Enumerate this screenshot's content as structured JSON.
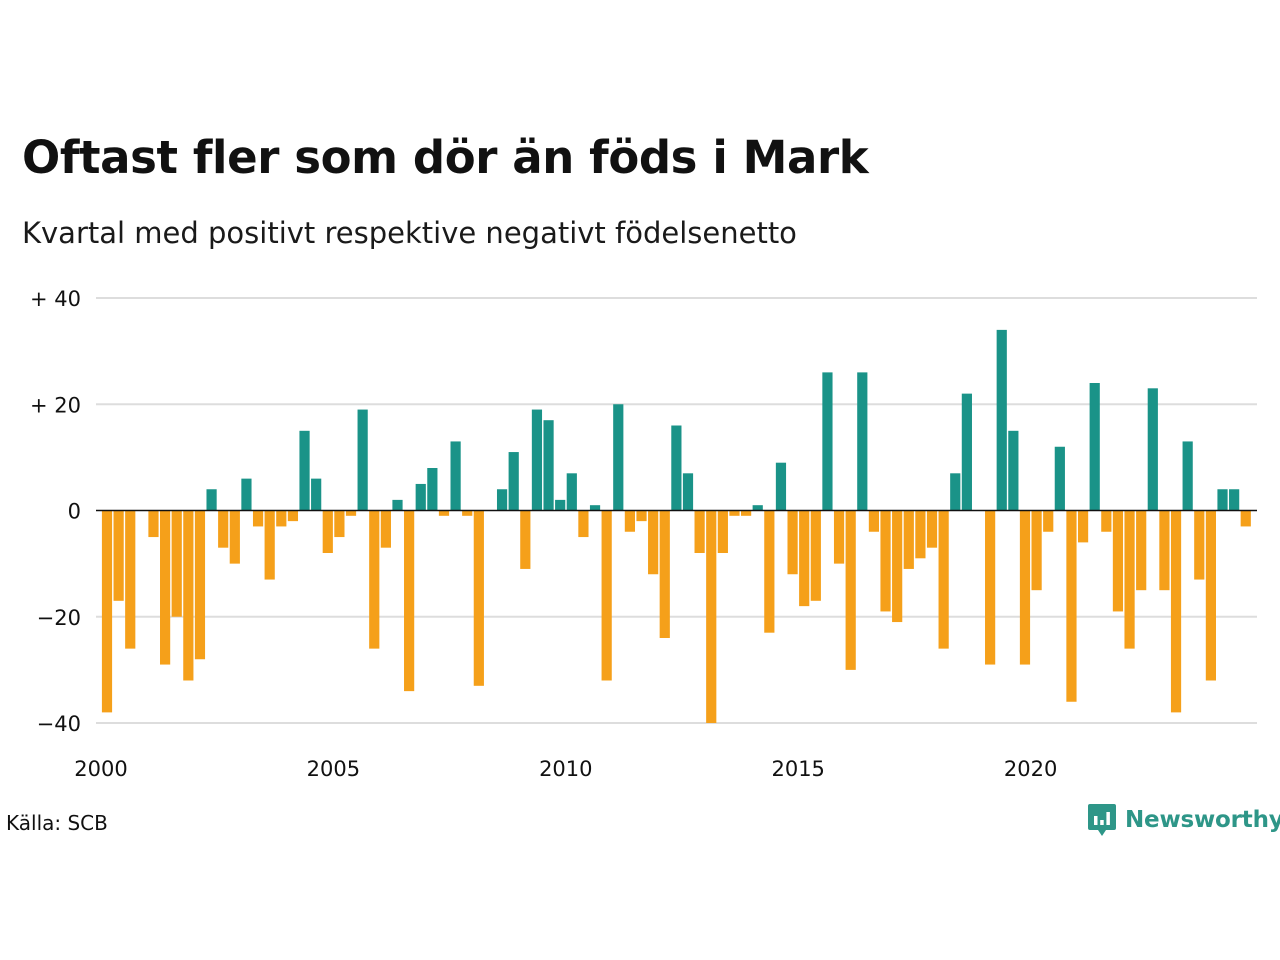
{
  "header": {
    "title": "Oftast fler som dör än föds i Mark",
    "subtitle": "Kvartal med positivt respektive negativt födelsenetto"
  },
  "footer": {
    "source": "Källa: SCB",
    "brand": "Newsworthy",
    "brand_icon": "newsworthy-logo-icon"
  },
  "colors": {
    "positive": "#1a9388",
    "negative": "#f5a01a",
    "grid": "#dddddd",
    "zero_line": "#111111",
    "brand": "#2e9688"
  },
  "chart_data": {
    "type": "bar",
    "title": "Oftast fler som dör än föds i Mark",
    "subtitle": "Kvartal med positivt respektive negativt födelsenetto",
    "xlabel": "",
    "ylabel": "",
    "x_start": 2000,
    "periods_per_year": 4,
    "ylim": [
      -40,
      40
    ],
    "yticks": [
      {
        "value": 40,
        "label": "+ 40"
      },
      {
        "value": 20,
        "label": "+ 20"
      },
      {
        "value": 0,
        "label": "0"
      },
      {
        "value": -20,
        "label": "−20"
      },
      {
        "value": -40,
        "label": "−40"
      }
    ],
    "xticks": [
      {
        "value": 2000,
        "label": "2000"
      },
      {
        "value": 2005,
        "label": "2005"
      },
      {
        "value": 2010,
        "label": "2010"
      },
      {
        "value": 2015,
        "label": "2015"
      },
      {
        "value": 2020,
        "label": "2020"
      }
    ],
    "grid": true,
    "legend": "none",
    "values": [
      -38,
      -17,
      -26,
      0,
      -5,
      -29,
      -20,
      -32,
      -28,
      4,
      -7,
      -10,
      6,
      -3,
      -13,
      -3,
      -2,
      15,
      6,
      -8,
      -5,
      -1,
      19,
      -26,
      -7,
      2,
      -34,
      5,
      8,
      -1,
      13,
      -1,
      -33,
      0,
      4,
      11,
      -11,
      19,
      17,
      2,
      7,
      -5,
      1,
      -32,
      20,
      -4,
      -2,
      -12,
      -24,
      16,
      7,
      -8,
      -40,
      -8,
      -1,
      -1,
      1,
      -23,
      9,
      -12,
      -18,
      -17,
      26,
      -10,
      -30,
      26,
      -4,
      -19,
      -21,
      -11,
      -9,
      -7,
      -26,
      7,
      22,
      0,
      -29,
      34,
      15,
      -29,
      -15,
      -4,
      12,
      -36,
      -6,
      24,
      -4,
      -19,
      -26,
      -15,
      23,
      -15,
      -38,
      13,
      -13,
      -32,
      4,
      4,
      -3
    ]
  }
}
